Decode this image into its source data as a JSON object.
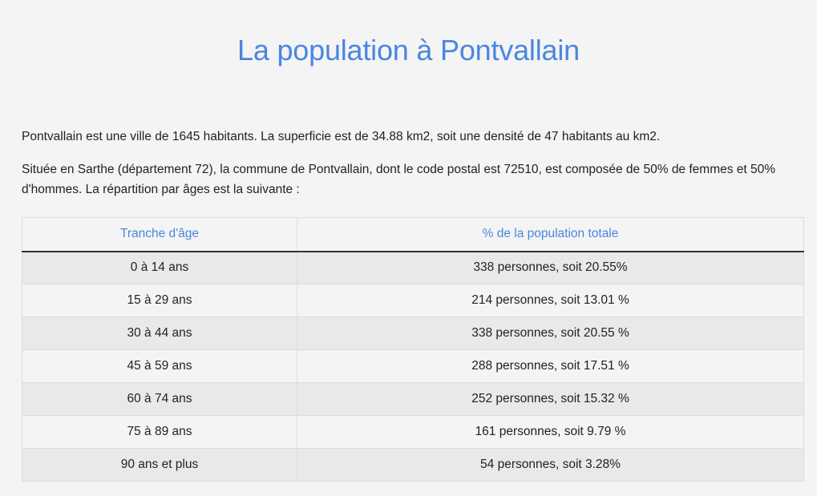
{
  "page": {
    "title": "La population à Pontvallain",
    "paragraph_1": "Pontvallain est une ville de 1645 habitants. La superficie est de 34.88 km2, soit une densité de 47 habitants au km2.",
    "paragraph_2": "Située en Sarthe (département 72), la commune de Pontvallain, dont le code postal est 72510, est composée de 50% de femmes et 50% d'hommes. La répartition par âges est la suivante :"
  },
  "table": {
    "headers": [
      "Tranche d'âge",
      "% de la population totale"
    ],
    "rows": [
      [
        "0 à 14 ans",
        "338 personnes, soit 20.55%"
      ],
      [
        "15 à 29 ans",
        "214 personnes, soit 13.01 %"
      ],
      [
        "30 à 44 ans",
        "338 personnes, soit 20.55 %"
      ],
      [
        "45 à 59 ans",
        "288 personnes, soit 17.51 %"
      ],
      [
        "60 à 74 ans",
        "252 personnes, soit 15.32 %"
      ],
      [
        "75 à 89 ans",
        "161 personnes, soit 9.79 %"
      ],
      [
        "90 ans et plus",
        "54 personnes, soit 3.28%"
      ]
    ]
  },
  "colors": {
    "accent": "#4a86e0",
    "background": "#f4f4f4",
    "row_alt": "#e9e9e9"
  }
}
